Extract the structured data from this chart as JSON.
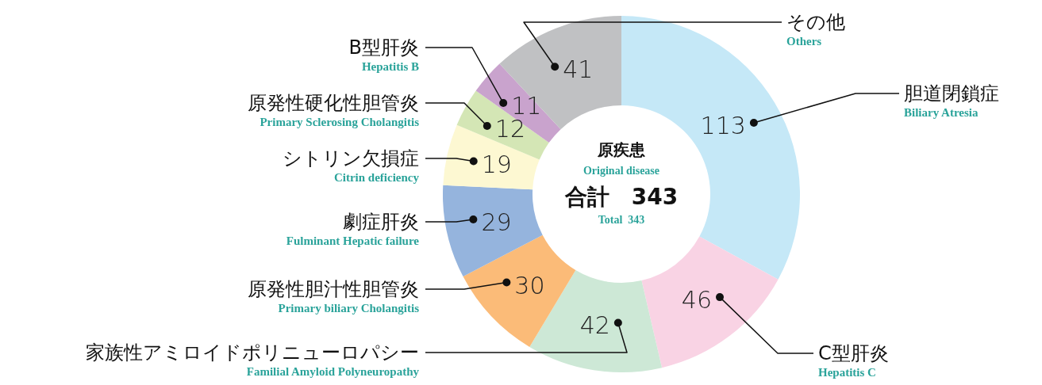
{
  "chart_data": {
    "type": "donut",
    "title": "原疾患\nOriginal disease",
    "subtitle": "合計　343\nTotal  343",
    "categories": [
      "胆道閉鎖症\nBiliary Atresia",
      "C型肝炎\nHepatitis C",
      "家族性アミロイドポリニューロパシー\nFamilial Amyloid Polyneuropathy",
      "原発性胆汁性胆管炎\nPrimary biliary Cholangitis",
      "劇症肝炎\nFulminant Hepatic failure",
      "シトリン欠損症\nCitrin deficiency",
      "原発性硬化性胆管炎\nPrimary Sclerosing Cholangitis",
      "B型肝炎\nHepatitis B",
      "その他\nOthers"
    ],
    "values": [
      113,
      46,
      42,
      30,
      29,
      19,
      12,
      11,
      41
    ],
    "colors": [
      "#c5e8f7",
      "#f9d3e4",
      "#cde8d6",
      "#fbbb78",
      "#95b4dd",
      "#fdf8d2",
      "#d4e6b5",
      "#c9a3cd",
      "#c0c1c3"
    ],
    "data_labels": true
  }
}
